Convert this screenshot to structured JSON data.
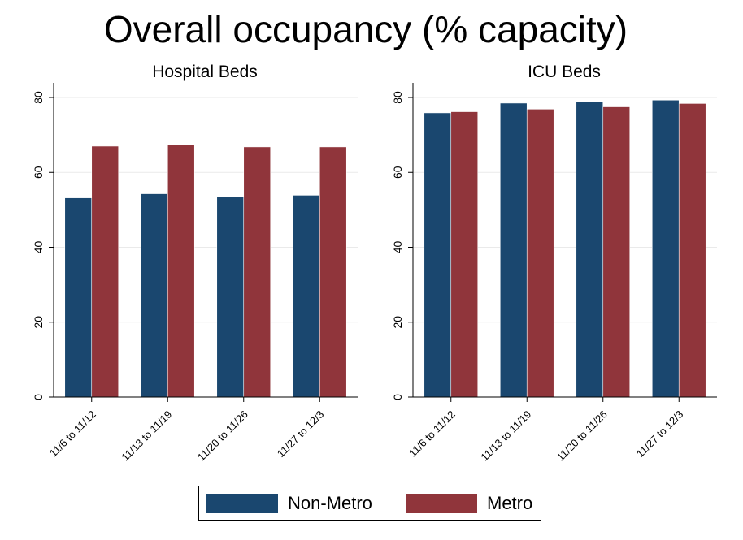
{
  "title": "Overall occupancy (% capacity)",
  "colors": {
    "non_metro": "#1a476f",
    "metro": "#90353b"
  },
  "legend": {
    "items": [
      {
        "label": "Non-Metro",
        "color": "#1a476f"
      },
      {
        "label": "Metro",
        "color": "#90353b"
      }
    ]
  },
  "chart_data": [
    {
      "type": "bar",
      "title": "Hospital Beds",
      "categories": [
        "11/6 to 11/12",
        "11/13 to 11/19",
        "11/20 to 11/26",
        "11/27 to 12/3"
      ],
      "series": [
        {
          "name": "Non-Metro",
          "values": [
            53.2,
            54.3,
            53.5,
            53.9
          ]
        },
        {
          "name": "Metro",
          "values": [
            67.0,
            67.4,
            66.8,
            66.8
          ]
        }
      ],
      "yticks": [
        0,
        20,
        40,
        60,
        80
      ],
      "ylim": [
        0,
        80
      ],
      "grid": true,
      "legend_position": "bottom"
    },
    {
      "type": "bar",
      "title": "ICU Beds",
      "categories": [
        "11/6 to 11/12",
        "11/13 to 11/19",
        "11/20 to 11/26",
        "11/27 to 12/3"
      ],
      "series": [
        {
          "name": "Non-Metro",
          "values": [
            75.9,
            78.5,
            78.9,
            79.3
          ]
        },
        {
          "name": "Metro",
          "values": [
            76.2,
            76.9,
            77.5,
            78.4
          ]
        }
      ],
      "yticks": [
        0,
        20,
        40,
        60,
        80
      ],
      "ylim": [
        0,
        80
      ],
      "grid": true,
      "legend_position": "bottom"
    }
  ]
}
